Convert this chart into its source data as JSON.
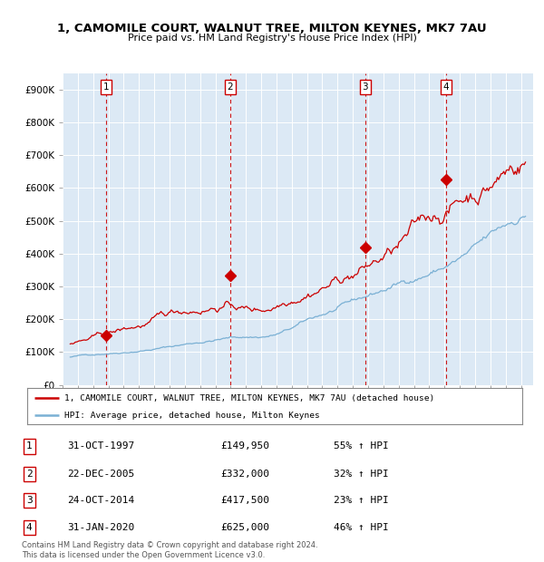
{
  "title_line1": "1, CAMOMILE COURT, WALNUT TREE, MILTON KEYNES, MK7 7AU",
  "title_line2": "Price paid vs. HM Land Registry's House Price Index (HPI)",
  "bg_color": "#dce9f5",
  "ylabel_ticks": [
    "£0",
    "£100K",
    "£200K",
    "£300K",
    "£400K",
    "£500K",
    "£600K",
    "£700K",
    "£800K",
    "£900K"
  ],
  "ytick_values": [
    0,
    100000,
    200000,
    300000,
    400000,
    500000,
    600000,
    700000,
    800000,
    900000
  ],
  "ylim": [
    0,
    950000
  ],
  "xlim_start": 1995.0,
  "xlim_end": 2025.8,
  "sale_dates_decimal": [
    1997.83,
    2005.97,
    2014.81,
    2020.08
  ],
  "sale_prices": [
    149950,
    332000,
    417500,
    625000
  ],
  "sale_labels": [
    "1",
    "2",
    "3",
    "4"
  ],
  "legend_line1": "1, CAMOMILE COURT, WALNUT TREE, MILTON KEYNES, MK7 7AU (detached house)",
  "legend_line2": "HPI: Average price, detached house, Milton Keynes",
  "table_rows": [
    [
      "1",
      "31-OCT-1997",
      "£149,950",
      "55% ↑ HPI"
    ],
    [
      "2",
      "22-DEC-2005",
      "£332,000",
      "32% ↑ HPI"
    ],
    [
      "3",
      "24-OCT-2014",
      "£417,500",
      "23% ↑ HPI"
    ],
    [
      "4",
      "31-JAN-2020",
      "£625,000",
      "46% ↑ HPI"
    ]
  ],
  "footer_line1": "Contains HM Land Registry data © Crown copyright and database right 2024.",
  "footer_line2": "This data is licensed under the Open Government Licence v3.0.",
  "red_color": "#cc0000",
  "blue_color": "#7ab0d4",
  "dashed_red": "#cc0000"
}
